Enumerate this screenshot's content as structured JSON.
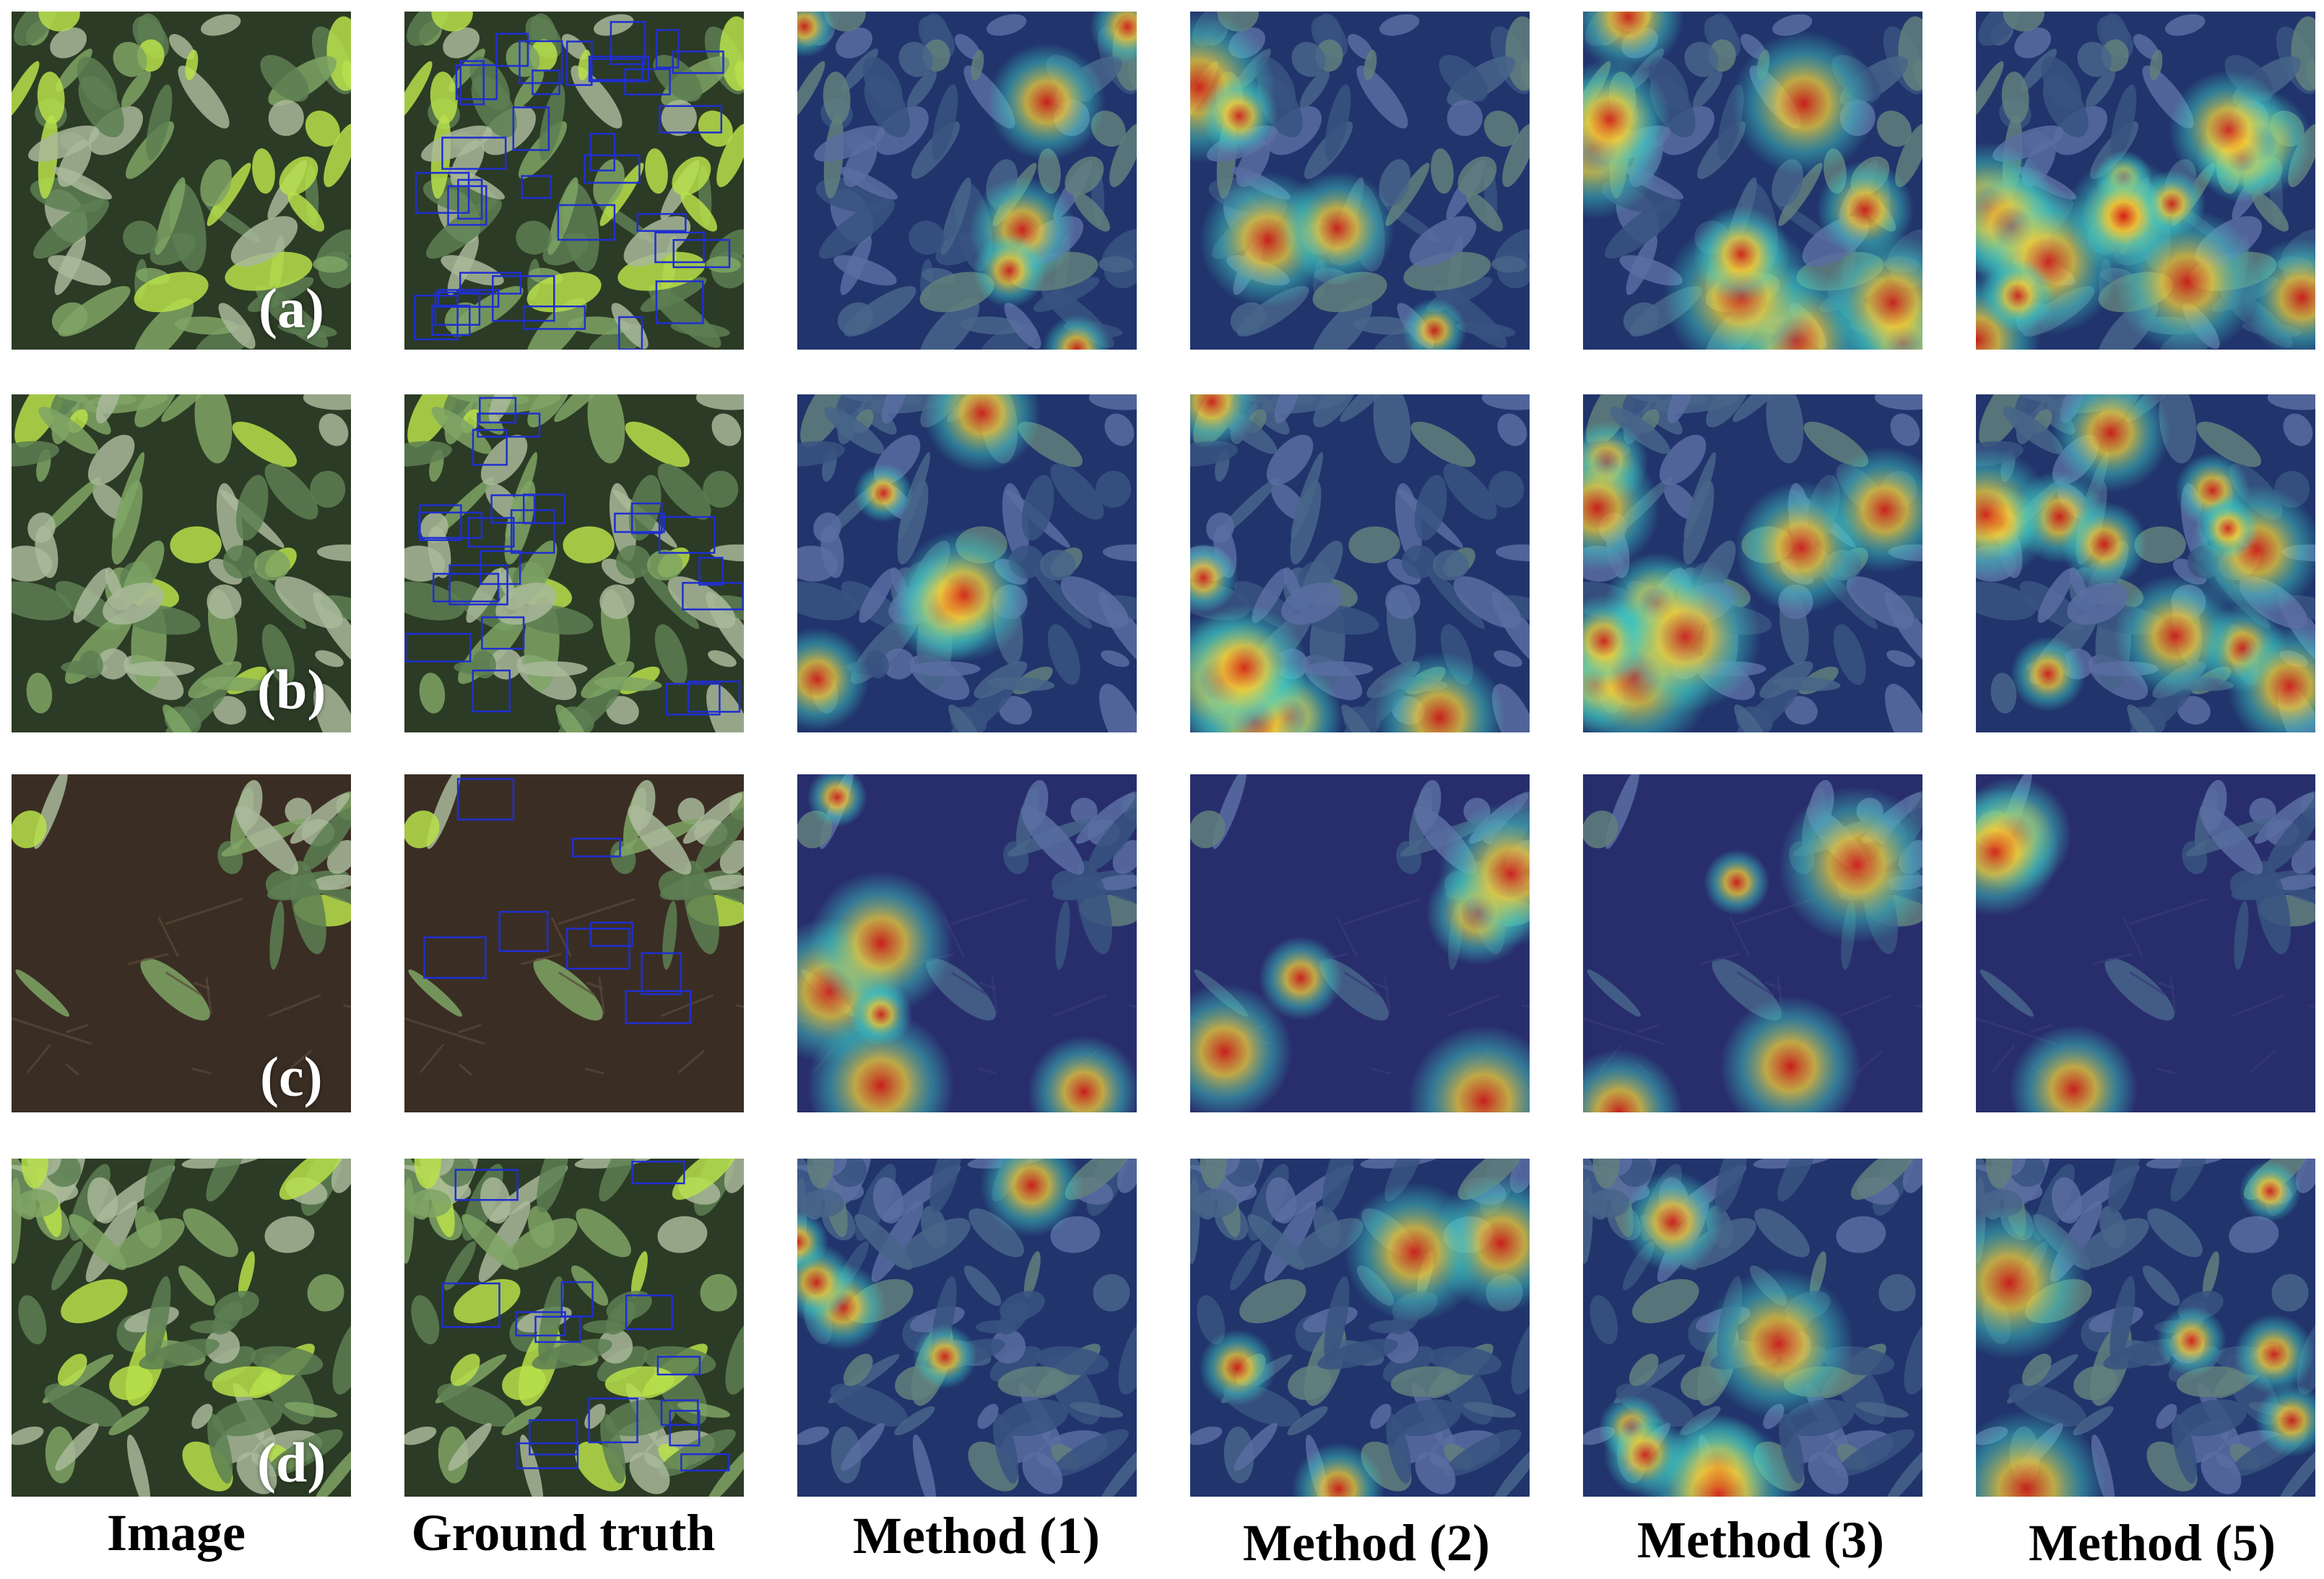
{
  "figure": {
    "columns": [
      {
        "label": "Image",
        "kind": "photo"
      },
      {
        "label": "Ground truth",
        "kind": "boxes"
      },
      {
        "label": "Method (1)",
        "kind": "heatmap"
      },
      {
        "label": "Method (2)",
        "kind": "heatmap"
      },
      {
        "label": "Method (3)",
        "kind": "heatmap"
      },
      {
        "label": "Method (5)",
        "kind": "heatmap"
      }
    ],
    "rows": [
      {
        "label": "(a)"
      },
      {
        "label": "(b)"
      },
      {
        "label": "(c)"
      },
      {
        "label": "(d)"
      }
    ]
  },
  "palette": {
    "box_stroke": "#1f2fd0",
    "leaf_dark": "#2f4a2a",
    "leaf_light": "#cfe07a",
    "soil": "#3a2e24",
    "heat_low": "#1a2fa8",
    "heat_mid": "#3fd0c8",
    "heat_high": "#d81d14"
  }
}
